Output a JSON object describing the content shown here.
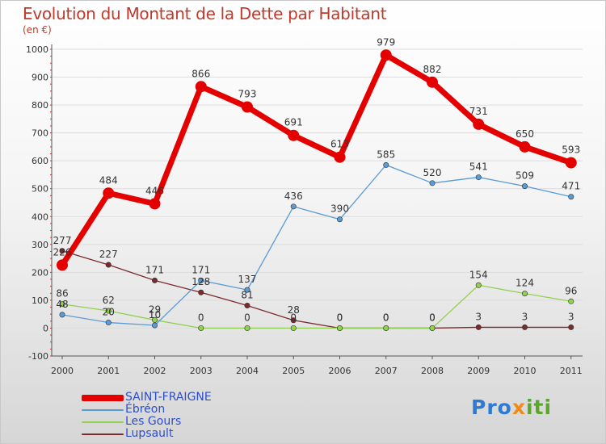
{
  "chart_data": {
    "type": "line",
    "title": "Evolution du Montant de la Dette par Habitant",
    "subtitle": "(en €)",
    "x": [
      "2000",
      "2001",
      "2002",
      "2003",
      "2004",
      "2005",
      "2006",
      "2007",
      "2008",
      "2009",
      "2010",
      "2011"
    ],
    "yticks": [
      "-100",
      "0",
      "100",
      "200",
      "300",
      "400",
      "500",
      "600",
      "700",
      "800",
      "900",
      "1000"
    ],
    "ylim": [
      -100,
      1000
    ],
    "grid": "horizontal",
    "legend_position": "bottom-left",
    "series": [
      {
        "name": "SAINT-FRAIGNE",
        "color": "#e50000",
        "width": 7,
        "marker": 7,
        "values": [
          226,
          484,
          446,
          866,
          793,
          691,
          613,
          979,
          882,
          731,
          650,
          593
        ],
        "labels": [
          "226",
          "484",
          "446",
          "866",
          "793",
          "691",
          "613",
          "979",
          "882",
          "731",
          "650",
          "593"
        ]
      },
      {
        "name": "Ébréon",
        "color": "#5b9bd5",
        "width": 1.3,
        "marker": 3.2,
        "values": [
          48,
          20,
          10,
          171,
          137,
          436,
          390,
          585,
          520,
          541,
          509,
          471
        ],
        "labels": [
          "48",
          "20",
          "10",
          "171",
          "137",
          "436",
          "390",
          "585",
          "520",
          "541",
          "509",
          "471"
        ]
      },
      {
        "name": "Les Gours",
        "color": "#92d050",
        "width": 1.3,
        "marker": 3.2,
        "values": [
          86,
          62,
          29,
          0,
          0,
          0,
          0,
          0,
          0,
          154,
          124,
          96
        ],
        "labels": [
          "86",
          "62",
          "29",
          "0",
          "0",
          "0",
          "0",
          "0",
          "0",
          "154",
          "124",
          "96"
        ]
      },
      {
        "name": "Lupsault",
        "color": "#7b2b2b",
        "width": 1.3,
        "marker": 3.2,
        "values": [
          277,
          227,
          171,
          128,
          81,
          28,
          0,
          0,
          0,
          3,
          3,
          3
        ],
        "labels": [
          "277",
          "227",
          "171",
          "128",
          "81",
          "28",
          "0",
          "0",
          "0",
          "3",
          "3",
          "3"
        ]
      }
    ]
  },
  "logo": {
    "p1": "Pro",
    "p2": "x",
    "p3": "iti"
  }
}
